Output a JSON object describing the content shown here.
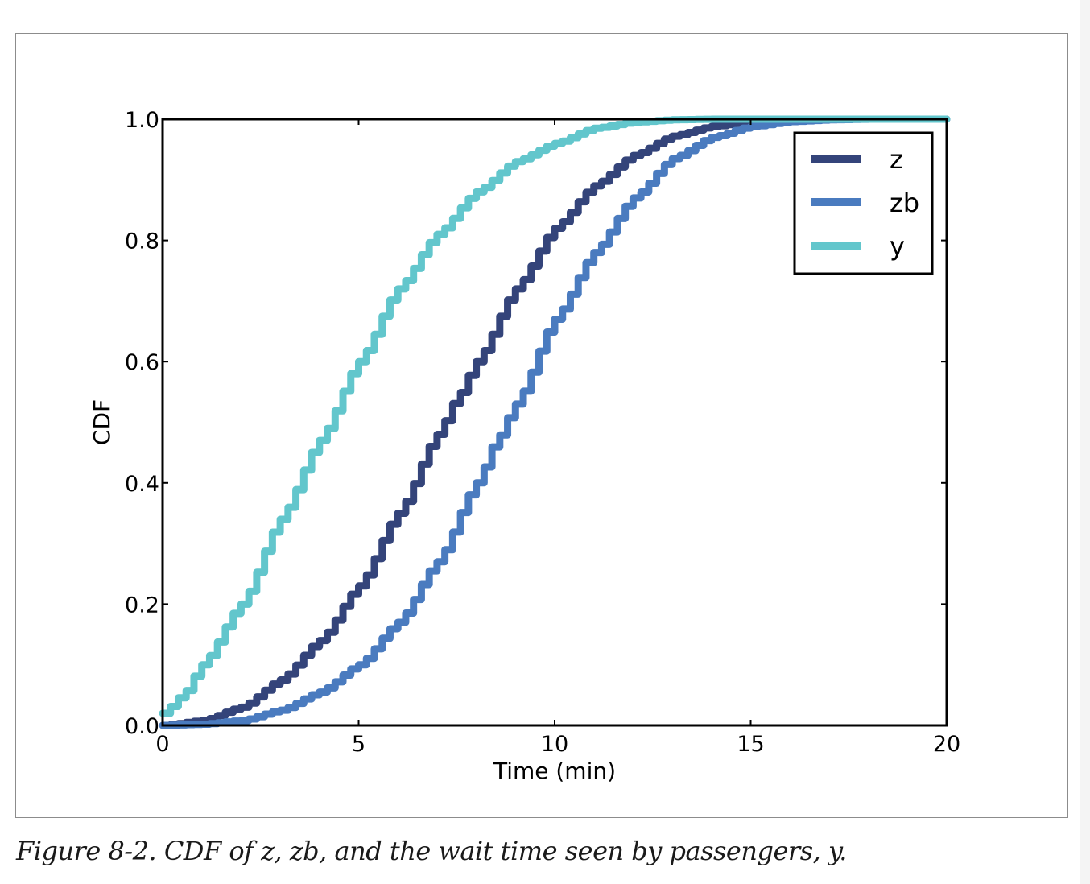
{
  "caption": "Figure 8-2. CDF of z, zb, and the wait time seen by passengers, y.",
  "chart_data": {
    "type": "line",
    "title": "",
    "xlabel": "Time (min)",
    "ylabel": "CDF",
    "xlim": [
      0,
      20
    ],
    "ylim": [
      0,
      1.0
    ],
    "xticks": [
      0,
      5,
      10,
      15,
      20
    ],
    "xtick_labels": [
      "0",
      "5",
      "10",
      "15",
      "20"
    ],
    "yticks": [
      0.0,
      0.2,
      0.4,
      0.6,
      0.8,
      1.0
    ],
    "ytick_labels": [
      "0.0",
      "0.2",
      "0.4",
      "0.6",
      "0.8",
      "1.0"
    ],
    "grid": false,
    "legend_position": "top-right",
    "series": [
      {
        "name": "z",
        "color": "#34447a",
        "x": [
          0,
          1,
          2,
          3,
          4,
          5,
          6,
          7,
          7.5,
          8,
          9,
          10,
          11,
          12,
          13,
          14,
          15,
          16,
          17,
          18,
          19,
          20
        ],
        "y": [
          0.0,
          0.008,
          0.03,
          0.075,
          0.14,
          0.23,
          0.35,
          0.48,
          0.54,
          0.6,
          0.72,
          0.82,
          0.89,
          0.94,
          0.972,
          0.988,
          0.996,
          0.999,
          1.0,
          1.0,
          1.0,
          1.0
        ]
      },
      {
        "name": "zb",
        "color": "#4a7bbf",
        "x": [
          0,
          1,
          2,
          3,
          4,
          5,
          6,
          7,
          8,
          8.5,
          9,
          10,
          11,
          12,
          13,
          14,
          15,
          16,
          17,
          18,
          19,
          20
        ],
        "y": [
          0.0,
          0.002,
          0.008,
          0.025,
          0.055,
          0.1,
          0.17,
          0.27,
          0.4,
          0.47,
          0.53,
          0.67,
          0.78,
          0.87,
          0.935,
          0.97,
          0.988,
          0.996,
          0.999,
          1.0,
          1.0,
          1.0
        ]
      },
      {
        "name": "y",
        "color": "#62c6cc",
        "x": [
          0,
          0.5,
          1,
          2,
          3,
          4,
          5,
          6,
          7,
          8,
          9,
          10,
          11,
          12,
          13,
          14,
          15,
          16,
          17,
          18,
          19,
          20
        ],
        "y": [
          0.02,
          0.05,
          0.1,
          0.2,
          0.34,
          0.47,
          0.6,
          0.72,
          0.81,
          0.88,
          0.93,
          0.96,
          0.985,
          0.995,
          0.999,
          1.0,
          1.0,
          1.0,
          1.0,
          1.0,
          1.0,
          1.0
        ]
      }
    ]
  }
}
